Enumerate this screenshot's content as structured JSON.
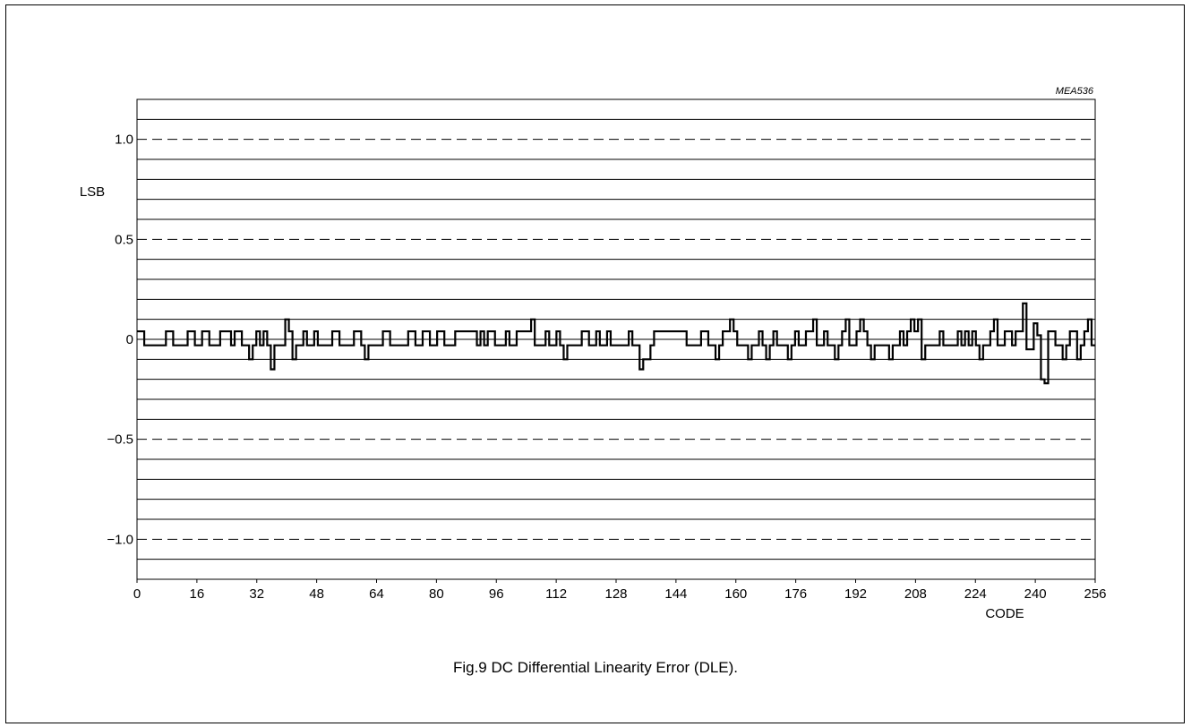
{
  "chart_data": {
    "type": "line",
    "figure_ref": "MEA536",
    "ylabel": "LSB",
    "xlabel": "CODE",
    "xlim": [
      0,
      256
    ],
    "ylim": [
      -1.2,
      1.2
    ],
    "x_ticks": [
      0,
      16,
      32,
      48,
      64,
      80,
      96,
      112,
      128,
      144,
      160,
      176,
      192,
      208,
      224,
      240,
      256
    ],
    "y_ticks": [
      {
        "value": 1.0,
        "label": "1.0"
      },
      {
        "value": 0.5,
        "label": "0.5"
      },
      {
        "value": 0,
        "label": "0"
      },
      {
        "value": -0.5,
        "label": "−0.5"
      },
      {
        "value": -1.0,
        "label": "−1.0"
      }
    ],
    "dashed_levels": [
      1.0,
      0.5,
      -0.5,
      -1.0
    ],
    "grid_step": 0.1,
    "series": [
      {
        "step": "post",
        "values": [
          0.04,
          0.04,
          -0.03,
          -0.03,
          -0.03,
          -0.03,
          -0.03,
          -0.03,
          0.04,
          0.04,
          -0.03,
          -0.03,
          -0.03,
          -0.03,
          0.04,
          0.04,
          -0.03,
          -0.03,
          0.04,
          0.04,
          -0.03,
          -0.03,
          -0.03,
          0.04,
          0.04,
          0.04,
          -0.03,
          0.04,
          0.04,
          -0.03,
          -0.03,
          -0.1,
          -0.03,
          0.04,
          -0.03,
          0.04,
          -0.03,
          -0.15,
          -0.03,
          -0.03,
          -0.03,
          0.1,
          0.04,
          -0.1,
          -0.03,
          -0.03,
          0.04,
          -0.03,
          -0.03,
          0.04,
          -0.03,
          -0.03,
          -0.03,
          -0.03,
          0.04,
          0.04,
          -0.03,
          -0.03,
          -0.03,
          -0.03,
          0.04,
          0.04,
          -0.03,
          -0.1,
          -0.03,
          -0.03,
          -0.03,
          -0.03,
          0.04,
          0.04,
          -0.03,
          -0.03,
          -0.03,
          -0.03,
          -0.03,
          0.04,
          0.04,
          -0.03,
          -0.03,
          0.04,
          0.04,
          -0.03,
          -0.03,
          0.04,
          0.04,
          -0.03,
          -0.03,
          -0.03,
          0.04,
          0.04,
          0.04,
          0.04,
          0.04,
          0.04,
          -0.03,
          0.04,
          -0.03,
          0.04,
          0.04,
          -0.03,
          -0.03,
          -0.03,
          0.04,
          -0.03,
          -0.03,
          0.04,
          0.04,
          0.04,
          0.04,
          0.1,
          -0.03,
          -0.03,
          -0.03,
          0.04,
          -0.03,
          -0.03,
          0.04,
          -0.03,
          -0.1,
          -0.03,
          -0.03,
          -0.03,
          -0.03,
          0.04,
          0.04,
          -0.03,
          -0.03,
          0.04,
          -0.03,
          -0.03,
          0.04,
          -0.03,
          -0.03,
          -0.03,
          -0.03,
          -0.03,
          0.04,
          -0.03,
          -0.03,
          -0.15,
          -0.1,
          -0.1,
          -0.03,
          0.04,
          0.04,
          0.04,
          0.04,
          0.04,
          0.04,
          0.04,
          0.04,
          0.04,
          -0.03,
          -0.03,
          -0.03,
          -0.03,
          0.04,
          0.04,
          -0.03,
          -0.03,
          -0.1,
          -0.03,
          0.04,
          0.04,
          0.1,
          0.04,
          -0.03,
          -0.03,
          -0.03,
          -0.1,
          -0.03,
          -0.03,
          0.04,
          -0.03,
          -0.1,
          -0.03,
          0.04,
          -0.03,
          -0.03,
          -0.03,
          -0.1,
          -0.03,
          0.04,
          -0.03,
          -0.03,
          0.04,
          0.04,
          0.1,
          -0.03,
          -0.03,
          0.04,
          -0.03,
          -0.03,
          -0.1,
          -0.03,
          0.04,
          0.1,
          -0.03,
          -0.03,
          0.04,
          0.1,
          0.04,
          -0.03,
          -0.1,
          -0.03,
          -0.03,
          -0.03,
          -0.03,
          -0.1,
          -0.03,
          -0.03,
          0.04,
          -0.03,
          0.04,
          0.1,
          0.04,
          0.1,
          -0.1,
          -0.03,
          -0.03,
          -0.03,
          -0.03,
          0.04,
          -0.03,
          -0.03,
          -0.03,
          -0.03,
          0.04,
          -0.03,
          0.04,
          -0.03,
          0.04,
          -0.03,
          -0.1,
          -0.03,
          -0.03,
          0.04,
          0.1,
          -0.03,
          -0.03,
          0.04,
          0.04,
          -0.03,
          0.04,
          0.04,
          0.18,
          -0.05,
          -0.05,
          0.08,
          0.02,
          -0.2,
          -0.22,
          0.04,
          0.04,
          -0.03,
          -0.03,
          -0.1,
          -0.03,
          0.04,
          0.04,
          -0.1,
          -0.03,
          0.04,
          0.1,
          -0.03
        ]
      }
    ]
  },
  "caption": "Fig.9  DC Differential Linearity Error (DLE)."
}
